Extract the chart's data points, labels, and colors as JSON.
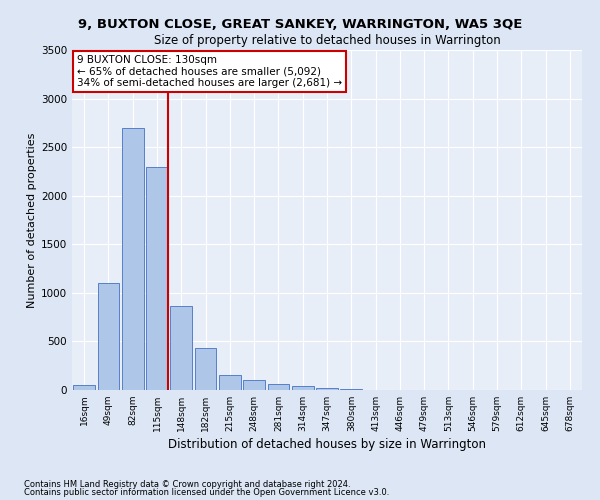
{
  "title": "9, BUXTON CLOSE, GREAT SANKEY, WARRINGTON, WA5 3QE",
  "subtitle": "Size of property relative to detached houses in Warrington",
  "xlabel": "Distribution of detached houses by size in Warrington",
  "ylabel": "Number of detached properties",
  "bin_labels": [
    "16sqm",
    "49sqm",
    "82sqm",
    "115sqm",
    "148sqm",
    "182sqm",
    "215sqm",
    "248sqm",
    "281sqm",
    "314sqm",
    "347sqm",
    "380sqm",
    "413sqm",
    "446sqm",
    "479sqm",
    "513sqm",
    "546sqm",
    "579sqm",
    "612sqm",
    "645sqm",
    "678sqm"
  ],
  "bar_heights": [
    50,
    1100,
    2700,
    2300,
    860,
    430,
    155,
    100,
    65,
    40,
    20,
    10,
    5,
    3,
    2,
    1,
    1,
    0,
    0,
    0,
    0
  ],
  "bar_color": "#aec6e8",
  "bar_edge_color": "#4472c4",
  "vline_color": "#cc0000",
  "annotation_text": "9 BUXTON CLOSE: 130sqm\n← 65% of detached houses are smaller (5,092)\n34% of semi-detached houses are larger (2,681) →",
  "annotation_box_color": "#ffffff",
  "annotation_box_edge": "#cc0000",
  "ylim": [
    0,
    3500
  ],
  "yticks": [
    0,
    500,
    1000,
    1500,
    2000,
    2500,
    3000,
    3500
  ],
  "footer_line1": "Contains HM Land Registry data © Crown copyright and database right 2024.",
  "footer_line2": "Contains public sector information licensed under the Open Government Licence v3.0.",
  "bg_color": "#dce6f5",
  "plot_bg_color": "#e8eef8"
}
